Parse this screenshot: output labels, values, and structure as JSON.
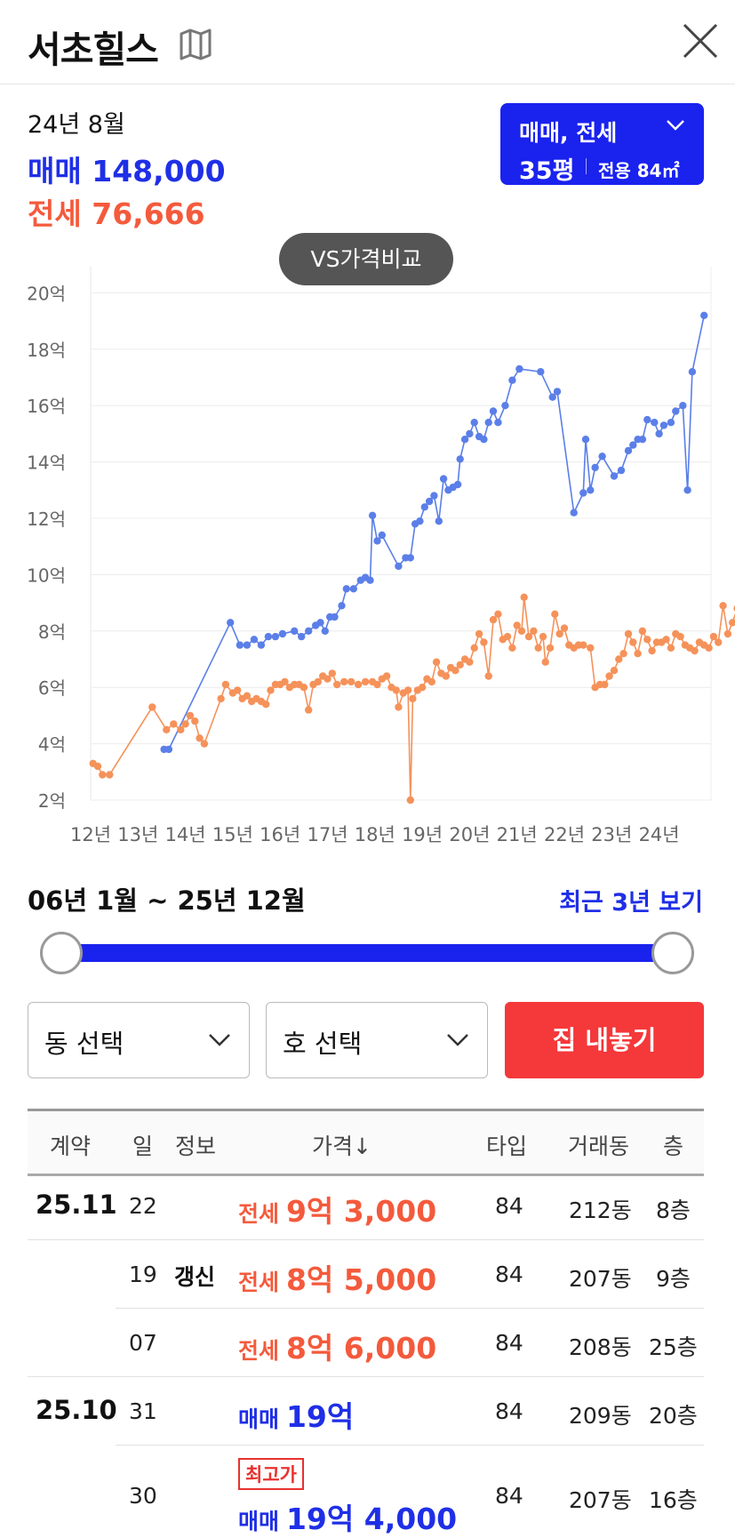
{
  "header": {
    "title": "서초힐스"
  },
  "summary": {
    "period": "24년 8월",
    "sale_label": "매매",
    "sale_value": "148,000",
    "jeonse_label": "전세",
    "jeonse_value": "76,666"
  },
  "type_selector": {
    "label": "매매, 전세",
    "size": "35평",
    "area": "전용 84㎡"
  },
  "vs_button": "VS가격비교",
  "colors": {
    "sale": "#1f2fe6",
    "jeonse": "#f45a3c",
    "accent": "#1a22ee",
    "list_button": "#f5383a"
  },
  "chart_data": {
    "type": "line",
    "x_unit": "years",
    "x_ticks": [
      "12년",
      "13년",
      "14년",
      "15년",
      "16년",
      "17년",
      "18년",
      "19년",
      "20년",
      "21년",
      "22년",
      "23년",
      "24년"
    ],
    "y_ticks": [
      "2억",
      "4억",
      "6억",
      "8억",
      "10억",
      "12억",
      "14억",
      "16억",
      "18억",
      "20억"
    ],
    "ylim": [
      2,
      20
    ],
    "series": [
      {
        "color": "#5b7fe8",
        "points": [
          [
            13.55,
            3.8
          ],
          [
            13.65,
            3.8
          ],
          [
            14.95,
            8.3
          ],
          [
            15.15,
            7.5
          ],
          [
            15.3,
            7.5
          ],
          [
            15.45,
            7.7
          ],
          [
            15.6,
            7.5
          ],
          [
            15.75,
            7.8
          ],
          [
            15.9,
            7.8
          ],
          [
            16.05,
            7.9
          ],
          [
            16.3,
            8.0
          ],
          [
            16.45,
            7.8
          ],
          [
            16.6,
            8.0
          ],
          [
            16.75,
            8.2
          ],
          [
            16.85,
            8.3
          ],
          [
            16.95,
            8.0
          ],
          [
            17.05,
            8.5
          ],
          [
            17.15,
            8.5
          ],
          [
            17.3,
            8.9
          ],
          [
            17.4,
            9.5
          ],
          [
            17.55,
            9.5
          ],
          [
            17.7,
            9.8
          ],
          [
            17.8,
            9.9
          ],
          [
            17.9,
            9.8
          ],
          [
            17.95,
            12.1
          ],
          [
            18.05,
            11.2
          ],
          [
            18.15,
            11.4
          ],
          [
            18.5,
            10.3
          ],
          [
            18.65,
            10.6
          ],
          [
            18.75,
            10.6
          ],
          [
            18.85,
            11.8
          ],
          [
            18.95,
            11.9
          ],
          [
            19.05,
            12.4
          ],
          [
            19.15,
            12.6
          ],
          [
            19.25,
            12.8
          ],
          [
            19.35,
            11.9
          ],
          [
            19.45,
            13.4
          ],
          [
            19.55,
            13.0
          ],
          [
            19.65,
            13.1
          ],
          [
            19.75,
            13.2
          ],
          [
            19.8,
            14.1
          ],
          [
            19.9,
            14.8
          ],
          [
            20.0,
            15.0
          ],
          [
            20.1,
            15.4
          ],
          [
            20.2,
            14.9
          ],
          [
            20.3,
            14.8
          ],
          [
            20.4,
            15.4
          ],
          [
            20.5,
            15.8
          ],
          [
            20.6,
            15.4
          ],
          [
            20.75,
            16.0
          ],
          [
            20.9,
            16.9
          ],
          [
            21.05,
            17.3
          ],
          [
            21.5,
            17.2
          ],
          [
            21.75,
            16.3
          ],
          [
            21.85,
            16.5
          ],
          [
            22.2,
            12.2
          ],
          [
            22.4,
            12.9
          ],
          [
            22.45,
            14.8
          ],
          [
            22.55,
            13.0
          ],
          [
            22.65,
            13.8
          ],
          [
            22.8,
            14.2
          ],
          [
            23.05,
            13.5
          ],
          [
            23.2,
            13.7
          ],
          [
            23.35,
            14.4
          ],
          [
            23.45,
            14.6
          ],
          [
            23.55,
            14.8
          ],
          [
            23.65,
            14.8
          ],
          [
            23.75,
            15.5
          ],
          [
            23.9,
            15.4
          ],
          [
            24.0,
            15.0
          ],
          [
            24.1,
            15.3
          ],
          [
            24.25,
            15.4
          ],
          [
            24.35,
            15.8
          ],
          [
            24.5,
            16.0
          ],
          [
            24.6,
            13.0
          ],
          [
            24.7,
            17.2
          ],
          [
            24.95,
            19.2
          ]
        ]
      },
      {
        "color": "#f5925a",
        "points": [
          [
            12.05,
            3.3
          ],
          [
            12.15,
            3.2
          ],
          [
            12.25,
            2.9
          ],
          [
            12.4,
            2.9
          ],
          [
            13.3,
            5.3
          ],
          [
            13.6,
            4.5
          ],
          [
            13.75,
            4.7
          ],
          [
            13.9,
            4.5
          ],
          [
            14.0,
            4.7
          ],
          [
            14.1,
            5.0
          ],
          [
            14.2,
            4.8
          ],
          [
            14.3,
            4.2
          ],
          [
            14.4,
            4.0
          ],
          [
            14.75,
            5.6
          ],
          [
            14.85,
            6.1
          ],
          [
            15.0,
            5.8
          ],
          [
            15.1,
            5.9
          ],
          [
            15.2,
            5.6
          ],
          [
            15.3,
            5.7
          ],
          [
            15.4,
            5.5
          ],
          [
            15.5,
            5.6
          ],
          [
            15.6,
            5.5
          ],
          [
            15.7,
            5.4
          ],
          [
            15.8,
            5.9
          ],
          [
            15.9,
            6.1
          ],
          [
            16.0,
            6.1
          ],
          [
            16.1,
            6.2
          ],
          [
            16.2,
            6.0
          ],
          [
            16.3,
            6.1
          ],
          [
            16.4,
            6.1
          ],
          [
            16.5,
            6.0
          ],
          [
            16.6,
            5.2
          ],
          [
            16.7,
            6.1
          ],
          [
            16.8,
            6.2
          ],
          [
            16.9,
            6.4
          ],
          [
            17.0,
            6.3
          ],
          [
            17.1,
            6.5
          ],
          [
            17.2,
            6.1
          ],
          [
            17.35,
            6.2
          ],
          [
            17.5,
            6.2
          ],
          [
            17.65,
            6.1
          ],
          [
            17.8,
            6.2
          ],
          [
            17.95,
            6.2
          ],
          [
            18.05,
            6.1
          ],
          [
            18.15,
            6.3
          ],
          [
            18.25,
            6.4
          ],
          [
            18.35,
            6.0
          ],
          [
            18.45,
            5.9
          ],
          [
            18.5,
            5.3
          ],
          [
            18.6,
            5.8
          ],
          [
            18.7,
            5.9
          ],
          [
            18.75,
            2.0
          ],
          [
            18.8,
            5.6
          ],
          [
            18.9,
            5.9
          ],
          [
            19.0,
            6.0
          ],
          [
            19.1,
            6.3
          ],
          [
            19.2,
            6.2
          ],
          [
            19.3,
            6.9
          ],
          [
            19.4,
            6.5
          ],
          [
            19.5,
            6.4
          ],
          [
            19.6,
            6.7
          ],
          [
            19.7,
            6.6
          ],
          [
            19.8,
            6.8
          ],
          [
            19.9,
            7.0
          ],
          [
            20.0,
            6.9
          ],
          [
            20.1,
            7.4
          ],
          [
            20.2,
            7.9
          ],
          [
            20.3,
            7.6
          ],
          [
            20.4,
            6.4
          ],
          [
            20.5,
            8.4
          ],
          [
            20.6,
            8.6
          ],
          [
            20.7,
            7.7
          ],
          [
            20.8,
            7.8
          ],
          [
            20.9,
            7.4
          ],
          [
            21.0,
            8.2
          ],
          [
            21.1,
            8.0
          ],
          [
            21.15,
            9.2
          ],
          [
            21.25,
            7.8
          ],
          [
            21.35,
            8.0
          ],
          [
            21.45,
            7.4
          ],
          [
            21.55,
            7.8
          ],
          [
            21.6,
            6.9
          ],
          [
            21.7,
            7.4
          ],
          [
            21.8,
            8.6
          ],
          [
            21.9,
            7.9
          ],
          [
            22.0,
            8.1
          ],
          [
            22.1,
            7.5
          ],
          [
            22.2,
            7.4
          ],
          [
            22.3,
            7.5
          ],
          [
            22.4,
            7.5
          ],
          [
            22.55,
            7.4
          ],
          [
            22.65,
            6.0
          ],
          [
            22.75,
            6.1
          ],
          [
            22.85,
            6.1
          ],
          [
            22.95,
            6.4
          ],
          [
            23.05,
            6.6
          ],
          [
            23.15,
            7.0
          ],
          [
            23.25,
            7.2
          ],
          [
            23.35,
            7.9
          ],
          [
            23.45,
            7.6
          ],
          [
            23.55,
            7.2
          ],
          [
            23.65,
            8.0
          ],
          [
            23.75,
            7.7
          ],
          [
            23.85,
            7.3
          ],
          [
            23.95,
            7.6
          ],
          [
            24.05,
            7.6
          ],
          [
            24.15,
            7.7
          ],
          [
            24.25,
            7.4
          ],
          [
            24.35,
            7.9
          ],
          [
            24.45,
            7.8
          ],
          [
            24.55,
            7.5
          ],
          [
            24.65,
            7.4
          ],
          [
            24.75,
            7.3
          ],
          [
            24.85,
            7.6
          ],
          [
            24.95,
            7.5
          ],
          [
            25.05,
            7.4
          ],
          [
            25.15,
            7.8
          ],
          [
            25.25,
            7.6
          ],
          [
            25.35,
            8.9
          ],
          [
            25.45,
            7.9
          ],
          [
            25.55,
            8.3
          ],
          [
            25.65,
            8.8
          ]
        ]
      }
    ]
  },
  "range": {
    "label": "06년 1월 ~ 25년 12월",
    "recent_link": "최근 3년 보기"
  },
  "selects": {
    "dong": "동 선택",
    "ho": "호 선택"
  },
  "list_button": "집 내놓기",
  "table": {
    "headers": {
      "contract": "계약",
      "day": "일",
      "info": "정보",
      "price": "가격↓",
      "type": "타입",
      "dong": "거래동",
      "floor": "층"
    },
    "rows": [
      {
        "month": "25.11",
        "day": "22",
        "info": "",
        "badge": "",
        "kind": "전세",
        "kind_class": "jeonse",
        "price": "9억 3,000",
        "type": "84",
        "dong": "212동",
        "floor": "8층"
      },
      {
        "month": "",
        "day": "19",
        "info": "갱신",
        "badge": "",
        "kind": "전세",
        "kind_class": "jeonse",
        "price": "8억 5,000",
        "type": "84",
        "dong": "207동",
        "floor": "9층"
      },
      {
        "month": "",
        "day": "07",
        "info": "",
        "badge": "",
        "kind": "전세",
        "kind_class": "jeonse",
        "price": "8억 6,000",
        "type": "84",
        "dong": "208동",
        "floor": "25층"
      },
      {
        "month": "25.10",
        "day": "31",
        "info": "",
        "badge": "",
        "kind": "매매",
        "kind_class": "sale",
        "price": "19억",
        "type": "84",
        "dong": "209동",
        "floor": "20층"
      },
      {
        "month": "",
        "day": "30",
        "info": "",
        "badge": "최고가",
        "kind": "매매",
        "kind_class": "sale",
        "price": "19억 4,000",
        "type": "84",
        "dong": "207동",
        "floor": "16층"
      }
    ]
  }
}
